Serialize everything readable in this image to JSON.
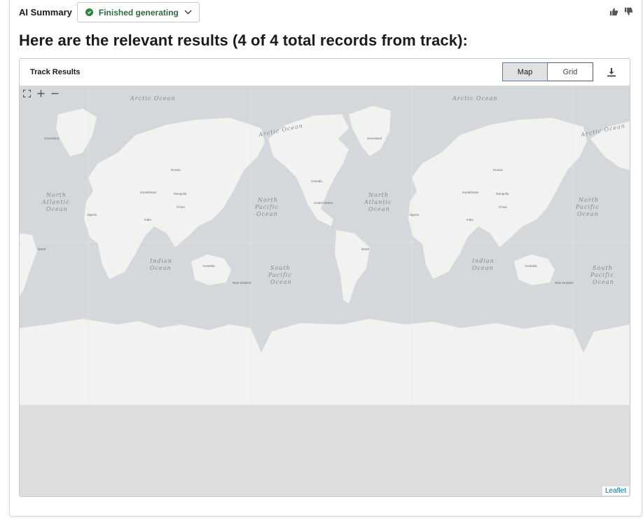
{
  "summary": {
    "title": "AI Summary",
    "status_label": "Finished generating",
    "status_color": "#2e8540",
    "status_icon": "check-circle-icon",
    "feedback_icons": [
      "thumbs-up-icon",
      "thumbs-down-icon"
    ]
  },
  "heading": "Here are the relevant results (4 of 4 total records from track):",
  "results": {
    "title": "Track Results",
    "view_toggle": [
      {
        "label": "Map",
        "active": true
      },
      {
        "label": "Grid",
        "active": false
      }
    ],
    "download_icon": "download-icon"
  },
  "map": {
    "controls": [
      "fullscreen-icon",
      "zoom-in-icon",
      "zoom-out-icon"
    ],
    "attribution": "Leaflet",
    "ocean_labels": {
      "arctic": "Arctic Ocean",
      "north_atlantic": [
        "North",
        "Atlantic",
        "Ocean"
      ],
      "north_pacific": [
        "North",
        "Pacific",
        "Ocean"
      ],
      "indian": [
        "Indian",
        "Ocean"
      ],
      "south_pacific": [
        "South",
        "Pacific",
        "Ocean"
      ]
    },
    "place_labels": {
      "greenland": "Greenland",
      "russia": "Russia",
      "canada": "Canada",
      "united_states": "United States",
      "kazakhstan": "Kazakhstan",
      "mongolia": "Mongolia",
      "china": "China",
      "brazil": "Brazil",
      "australia": "Australia",
      "india": "India",
      "algeria": "Algeria",
      "new_zealand": "New Zealand"
    },
    "colors": {
      "water": "#d4d8da",
      "land": "#f2f2f0",
      "empty": "#dddddd"
    }
  }
}
